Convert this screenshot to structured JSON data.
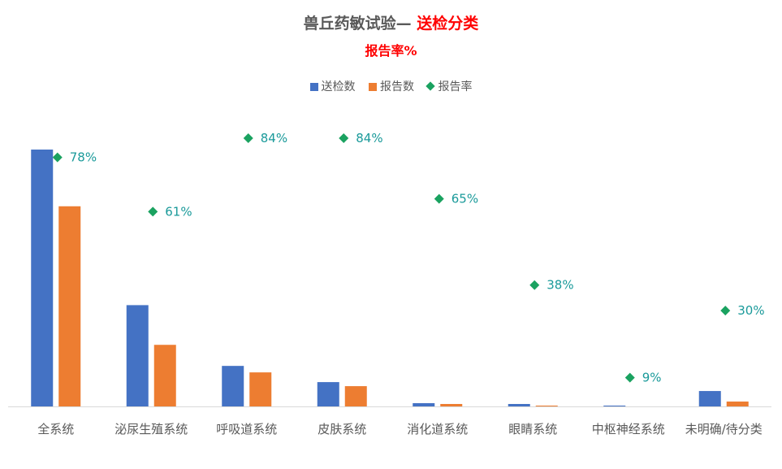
{
  "chart_data": {
    "type": "bar",
    "title_prefix": "兽丘药敏试验— ",
    "title_highlight": "送检分类",
    "subtitle": "报告率%",
    "categories": [
      "全系统",
      "泌尿生殖系统",
      "呼吸道系统",
      "皮肤系统",
      "消化道系统",
      "眼睛系统",
      "中枢神经系统",
      "未明确/待分类"
    ],
    "series": [
      {
        "name": "送检数",
        "type": "bar",
        "color": "#4472c4",
        "values": [
          317,
          125,
          50,
          30,
          4,
          3,
          1,
          19
        ]
      },
      {
        "name": "报告数",
        "type": "bar",
        "color": "#ed7d31",
        "values": [
          247,
          76,
          42,
          25,
          3,
          1,
          0,
          6
        ]
      },
      {
        "name": "报告率",
        "type": "scatter",
        "color": "#1aa260",
        "values": [
          78,
          61,
          84,
          84,
          65,
          38,
          9,
          30
        ],
        "labels": [
          "78%",
          "61%",
          "84%",
          "84%",
          "65%",
          "38%",
          "9%",
          "30%"
        ]
      }
    ],
    "bar_ylim": [
      0,
      317
    ],
    "rate_ylim": [
      0,
      100
    ],
    "legend_position": "top",
    "grid": false
  }
}
